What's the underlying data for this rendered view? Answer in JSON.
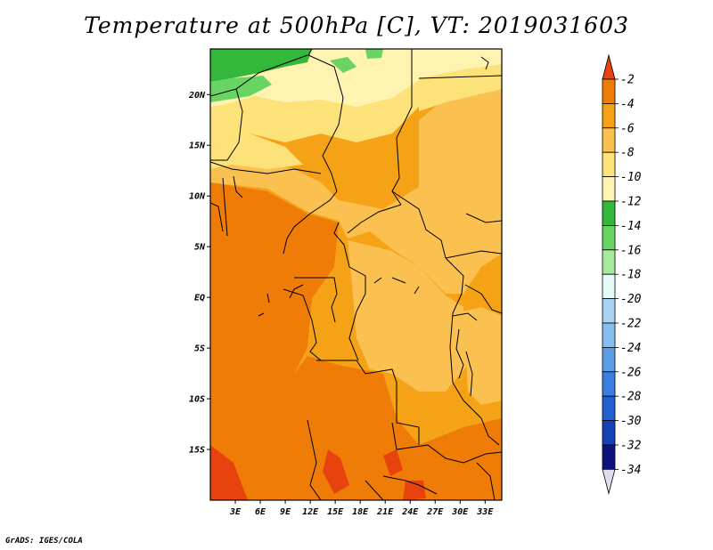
{
  "title": "Temperature at 500hPa [C], VT: 2019031603",
  "credit": "GrADS: IGES/COLA",
  "map": {
    "lat_labels": [
      "20N",
      "15N",
      "10N",
      "5N",
      "EQ",
      "5S",
      "10S",
      "15S"
    ],
    "lon_labels": [
      "3E",
      "6E",
      "9E",
      "12E",
      "15E",
      "18E",
      "21E",
      "24E",
      "27E",
      "30E",
      "33E"
    ],
    "lat_range": [
      -20,
      24.5
    ],
    "lon_range": [
      0,
      35
    ]
  },
  "colorbar": {
    "levels": [
      "-2",
      "-4",
      "-6",
      "-8",
      "-10",
      "-12",
      "-14",
      "-16",
      "-18",
      "-20",
      "-22",
      "-24",
      "-26",
      "-28",
      "-30",
      "-32",
      "-34"
    ],
    "colors": [
      "#e8420e",
      "#f07c08",
      "#f5a216",
      "#fac050",
      "#fde27a",
      "#fff3b2",
      "#34b83a",
      "#68d462",
      "#a6eaa0",
      "#e4faf6",
      "#a9d3f4",
      "#84bff0",
      "#5a9fe6",
      "#3a7ee0",
      "#1f5fcf",
      "#1441b4",
      "#0d137d",
      "#dedeef"
    ]
  },
  "chart_data": {
    "type": "heatmap",
    "title": "Temperature at 500hPa [C], VT: 2019031603",
    "variable": "Temperature at 500hPa [C]",
    "valid_time": "2019031603",
    "color_levels": [
      -2,
      -4,
      -6,
      -8,
      -10,
      -12,
      -14,
      -16,
      -18,
      -20,
      -22,
      -24,
      -26,
      -28,
      -30,
      -32,
      -34
    ],
    "x_ticks": [
      "3E",
      "6E",
      "9E",
      "12E",
      "15E",
      "18E",
      "21E",
      "24E",
      "27E",
      "30E",
      "33E"
    ],
    "y_ticks": [
      "20N",
      "15N",
      "10N",
      "5N",
      "EQ",
      "5S",
      "10S",
      "15S"
    ],
    "xlim": [
      0,
      35
    ],
    "ylim": [
      -20,
      24.5
    ]
  }
}
